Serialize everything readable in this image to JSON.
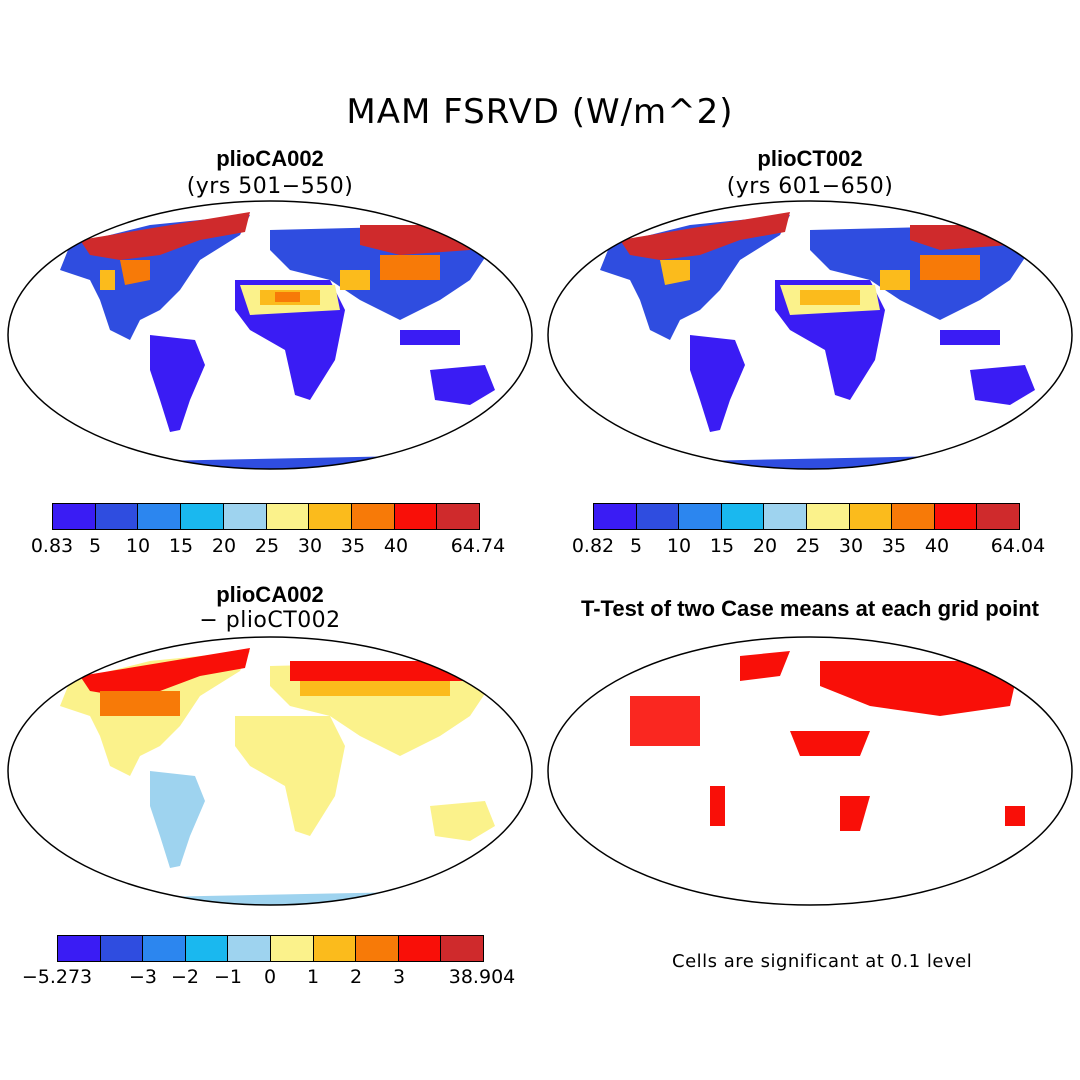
{
  "figure_title": "MAM FSRVD (W/m^2)",
  "panels": [
    {
      "title": "plioCA002",
      "subtitle": "(yrs 501−550)",
      "colorbar": {
        "colors": [
          "#3a1cf4",
          "#2f4de0",
          "#2c86ef",
          "#1ab8ef",
          "#9ed3ef",
          "#fbf28b",
          "#fbbb1c",
          "#f77a08",
          "#f90f08",
          "#cf2a2c"
        ],
        "labels": [
          "0.83",
          "5",
          "10",
          "15",
          "20",
          "25",
          "30",
          "35",
          "40",
          "64.74"
        ]
      }
    },
    {
      "title": "plioCT002",
      "subtitle": "(yrs 601−650)",
      "colorbar": {
        "colors": [
          "#3a1cf4",
          "#2f4de0",
          "#2c86ef",
          "#1ab8ef",
          "#9ed3ef",
          "#fbf28b",
          "#fbbb1c",
          "#f77a08",
          "#f90f08",
          "#cf2a2c"
        ],
        "labels": [
          "0.82",
          "5",
          "10",
          "15",
          "20",
          "25",
          "30",
          "35",
          "40",
          "64.04"
        ]
      }
    },
    {
      "title": "plioCA002",
      "subtitle": "− plioCT002",
      "colorbar": {
        "colors": [
          "#3a1cf4",
          "#2f4de0",
          "#2c86ef",
          "#1ab8ef",
          "#9ed3ef",
          "#fbf28b",
          "#fbbb1c",
          "#f77a08",
          "#f90f08",
          "#cf2a2c"
        ],
        "labels": [
          "−5.273",
          "−3",
          "−2",
          "−1",
          "0",
          "1",
          "2",
          "3",
          "38.904"
        ]
      }
    },
    {
      "title": "T-Test of two Case means at each grid point",
      "subtitle": "",
      "footnote": "Cells are significant at 0.1 level"
    }
  ],
  "map_colors": {
    "ocean": "#ffffff",
    "coast": "#000000",
    "significant": "#f90f08"
  }
}
